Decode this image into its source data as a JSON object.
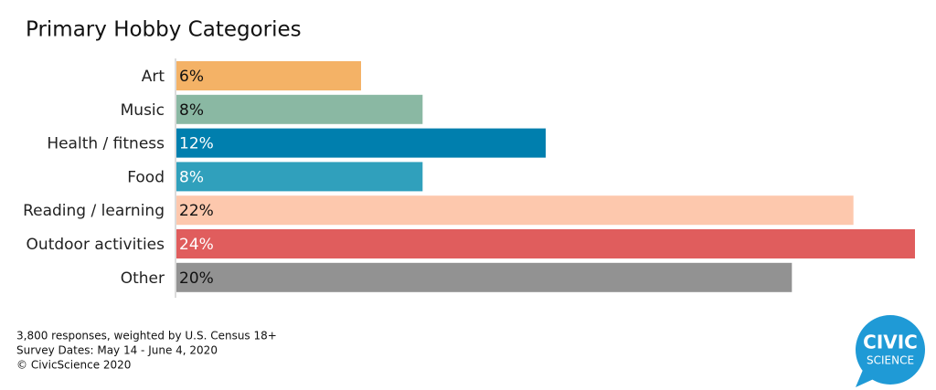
{
  "chart_data": {
    "type": "bar",
    "orientation": "horizontal",
    "title": "Primary Hobby Categories",
    "categories": [
      "Art",
      "Music",
      "Health / fitness",
      "Food",
      "Reading / learning",
      "Outdoor activities",
      "Other"
    ],
    "values": [
      6,
      8,
      12,
      8,
      22,
      24,
      20
    ],
    "value_labels": [
      "6%",
      "8%",
      "12%",
      "8%",
      "22%",
      "24%",
      "20%"
    ],
    "colors": [
      "#f4b266",
      "#8ab8a3",
      "#007fae",
      "#30a0bc",
      "#fdc8ad",
      "#e05d5d",
      "#929292"
    ]
  },
  "footer": [
    "3,800 responses, weighted by U.S. Census 18+",
    "Survey Dates: May 14 - June 4, 2020",
    "© CivicScience 2020"
  ],
  "logo": [
    "CIVIC",
    "SCIENCE"
  ]
}
